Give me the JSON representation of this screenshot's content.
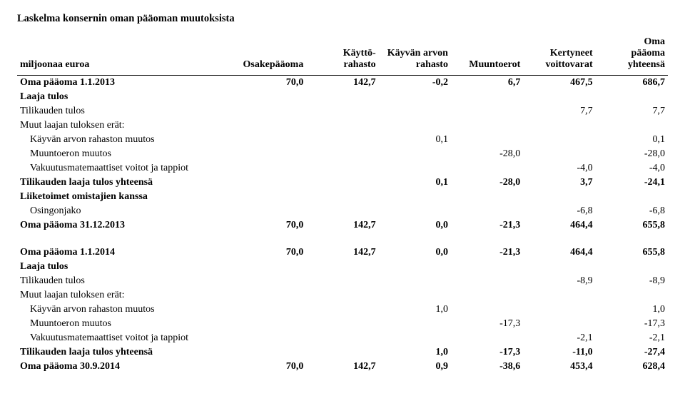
{
  "title": "Laskelma konsernin oman pääoman muutoksista",
  "headers": {
    "left": "miljoonaa euroa",
    "cols": [
      "Osakepääoma",
      "Käyttö-\nrahasto",
      "Käyvän arvon\nrahasto",
      "Muuntoerot",
      "Kertyneet\nvoittovarat",
      "Oma\npääoma\nyhteensä"
    ]
  },
  "rows": [
    {
      "label": "Oma pääoma 1.1.2013",
      "bold": true,
      "vals": [
        "70,0",
        "142,7",
        "-0,2",
        "6,7",
        "467,5",
        "686,7"
      ]
    },
    {
      "label": "Laaja tulos",
      "bold": true,
      "vals": [
        "",
        "",
        "",
        "",
        "",
        ""
      ]
    },
    {
      "label": "Tilikauden tulos",
      "bold": false,
      "vals": [
        "",
        "",
        "",
        "",
        "7,7",
        "7,7"
      ]
    },
    {
      "label": "Muut laajan tuloksen erät:",
      "bold": false,
      "vals": [
        "",
        "",
        "",
        "",
        "",
        ""
      ]
    },
    {
      "label": "Käyvän arvon rahaston muutos",
      "bold": false,
      "indent": true,
      "vals": [
        "",
        "",
        "0,1",
        "",
        "",
        "0,1"
      ]
    },
    {
      "label": "Muuntoeron muutos",
      "bold": false,
      "indent": true,
      "vals": [
        "",
        "",
        "",
        "-28,0",
        "",
        "-28,0"
      ]
    },
    {
      "label": "Vakuutusmatemaattiset voitot ja tappiot",
      "bold": false,
      "indent": true,
      "vals": [
        "",
        "",
        "",
        "",
        "-4,0",
        "-4,0"
      ]
    },
    {
      "label": "Tilikauden laaja tulos yhteensä",
      "bold": true,
      "vals": [
        "",
        "",
        "0,1",
        "-28,0",
        "3,7",
        "-24,1"
      ]
    },
    {
      "label": "Liiketoimet omistajien kanssa",
      "bold": true,
      "vals": [
        "",
        "",
        "",
        "",
        "",
        ""
      ]
    },
    {
      "label": "Osingonjako",
      "bold": false,
      "indent": true,
      "vals": [
        "",
        "",
        "",
        "",
        "-6,8",
        "-6,8"
      ]
    },
    {
      "label": "Oma pääoma 31.12.2013",
      "bold": true,
      "vals": [
        "70,0",
        "142,7",
        "0,0",
        "-21,3",
        "464,4",
        "655,8"
      ]
    },
    {
      "spacer": true
    },
    {
      "label": "Oma pääoma 1.1.2014",
      "bold": true,
      "vals": [
        "70,0",
        "142,7",
        "0,0",
        "-21,3",
        "464,4",
        "655,8"
      ]
    },
    {
      "label": "Laaja tulos",
      "bold": true,
      "vals": [
        "",
        "",
        "",
        "",
        "",
        ""
      ]
    },
    {
      "label": "Tilikauden tulos",
      "bold": false,
      "vals": [
        "",
        "",
        "",
        "",
        "-8,9",
        "-8,9"
      ]
    },
    {
      "label": "Muut laajan tuloksen erät:",
      "bold": false,
      "vals": [
        "",
        "",
        "",
        "",
        "",
        ""
      ]
    },
    {
      "label": "Käyvän arvon rahaston muutos",
      "bold": false,
      "indent": true,
      "vals": [
        "",
        "",
        "1,0",
        "",
        "",
        "1,0"
      ]
    },
    {
      "label": "Muuntoeron muutos",
      "bold": false,
      "indent": true,
      "vals": [
        "",
        "",
        "",
        "-17,3",
        "",
        "-17,3"
      ]
    },
    {
      "label": "Vakuutusmatemaattiset voitot ja tappiot",
      "bold": false,
      "indent": true,
      "vals": [
        "",
        "",
        "",
        "",
        "-2,1",
        "-2,1"
      ]
    },
    {
      "label": "Tilikauden laaja tulos yhteensä",
      "bold": true,
      "vals": [
        "",
        "",
        "1,0",
        "-17,3",
        "-11,0",
        "-27,4"
      ]
    },
    {
      "label": "Oma pääoma 30.9.2014",
      "bold": true,
      "vals": [
        "70,0",
        "142,7",
        "0,9",
        "-38,6",
        "453,4",
        "628,4"
      ]
    }
  ]
}
